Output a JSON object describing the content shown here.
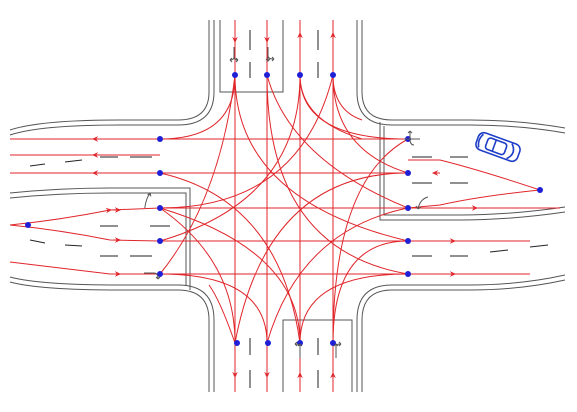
{
  "diagram": {
    "title": "",
    "colors": {
      "background": "#ffffff",
      "road_edge": "#555555",
      "lane_marking": "#222222",
      "trajectory": "#e0262b",
      "waypoint": "#1f1fd6",
      "vehicle": "#1f3ec8",
      "lane_arrow": "#555555"
    },
    "lane_arrow_icons": [
      "left-right-turn-arrow",
      "straight-right-turn-arrow",
      "left-turn-arrow",
      "right-turn-arrow"
    ],
    "vehicle_icon": "car-icon"
  }
}
